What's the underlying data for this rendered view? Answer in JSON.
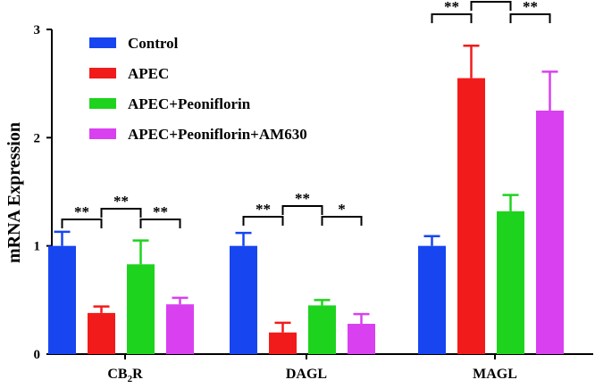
{
  "chart_data": {
    "type": "bar",
    "ylabel": "mRNA Expression",
    "ylim": [
      0,
      3
    ],
    "yticks": [
      "0",
      "1",
      "2",
      "3"
    ],
    "categories": [
      {
        "pre": "CB",
        "sub": "2",
        "post": "R"
      },
      {
        "pre": "DAGL",
        "sub": "",
        "post": ""
      },
      {
        "pre": "MAGL",
        "sub": "",
        "post": ""
      }
    ],
    "series": [
      {
        "name": "Control",
        "color": "#1746f0",
        "values": [
          1.0,
          1.0,
          1.0
        ],
        "errors": [
          0.13,
          0.12,
          0.09
        ]
      },
      {
        "name": "APEC",
        "color": "#f21b1b",
        "values": [
          0.38,
          0.2,
          2.55
        ],
        "errors": [
          0.06,
          0.09,
          0.3
        ]
      },
      {
        "name": "APEC+Peoniflorin",
        "color": "#1ed31e",
        "values": [
          0.83,
          0.45,
          1.32
        ],
        "errors": [
          0.22,
          0.05,
          0.15
        ]
      },
      {
        "name": "APEC+Peoniflorin+AM630",
        "color": "#d940f0",
        "values": [
          0.46,
          0.28,
          2.25
        ],
        "errors": [
          0.06,
          0.09,
          0.36
        ]
      }
    ],
    "significance": [
      {
        "category": 0,
        "from": 0,
        "to": 1,
        "label": "**"
      },
      {
        "category": 0,
        "from": 1,
        "to": 2,
        "label": "**"
      },
      {
        "category": 0,
        "from": 2,
        "to": 3,
        "label": "**"
      },
      {
        "category": 1,
        "from": 0,
        "to": 1,
        "label": "**"
      },
      {
        "category": 1,
        "from": 1,
        "to": 2,
        "label": "**"
      },
      {
        "category": 1,
        "from": 2,
        "to": 3,
        "label": "*"
      },
      {
        "category": 2,
        "from": 0,
        "to": 1,
        "label": "**"
      },
      {
        "category": 2,
        "from": 1,
        "to": 2,
        "label": "**"
      },
      {
        "category": 2,
        "from": 2,
        "to": 3,
        "label": "**"
      }
    ],
    "legend_position": "top-left",
    "grid": false
  }
}
